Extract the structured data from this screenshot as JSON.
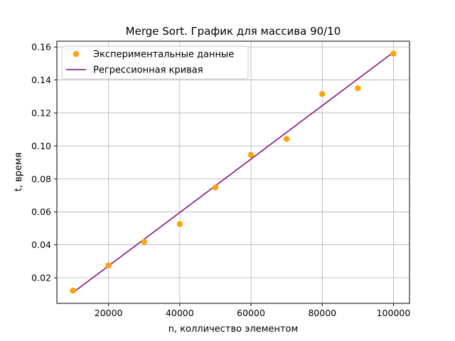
{
  "chart_data": {
    "type": "scatter",
    "title": "Merge Sort. График для массива 90/10",
    "xlabel": "n, колличество элементом",
    "ylabel": "t, время",
    "xlim": [
      5500,
      104500
    ],
    "ylim": [
      0.0045,
      0.1635
    ],
    "xticks": [
      20000,
      40000,
      60000,
      80000,
      100000
    ],
    "xtick_labels": [
      "20000",
      "40000",
      "60000",
      "80000",
      "100000"
    ],
    "yticks": [
      0.02,
      0.04,
      0.06,
      0.08,
      0.1,
      0.12,
      0.14,
      0.16
    ],
    "ytick_labels": [
      "0.02",
      "0.04",
      "0.06",
      "0.08",
      "0.10",
      "0.12",
      "0.14",
      "0.16"
    ],
    "grid": true,
    "legend_position": "top-left",
    "series": [
      {
        "name": "Экспериментальные данные",
        "kind": "scatter",
        "color": "#ffa500",
        "x": [
          10000,
          20000,
          30000,
          40000,
          50000,
          60000,
          70000,
          80000,
          90000,
          100000
        ],
        "y": [
          0.0122,
          0.0275,
          0.0418,
          0.0526,
          0.0748,
          0.0946,
          0.1042,
          0.1315,
          0.135,
          0.156
        ]
      },
      {
        "name": "Регрессионная кривая",
        "kind": "line",
        "color": "#800080",
        "x": [
          10000,
          100000
        ],
        "y": [
          0.011,
          0.1568
        ]
      }
    ]
  }
}
